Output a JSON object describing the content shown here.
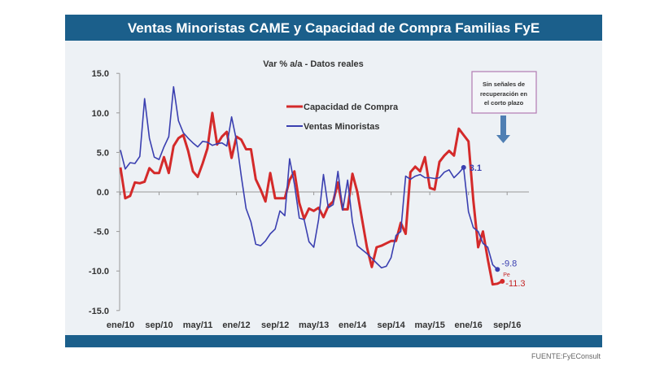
{
  "header": {
    "title": "Ventas Minoristas CAME y Capacidad de Compra Familias FyE",
    "bar_color": "#1b5f8b"
  },
  "footer": {
    "source": "FUENTE:FyEConsult"
  },
  "annotation": {
    "text_lines": [
      "Sin señales de",
      "recuperación en",
      "el corto plazo"
    ],
    "arrow": "down-arrow-icon"
  },
  "chart_data": {
    "type": "line",
    "subtitle": "Var % a/a - Datos reales",
    "ylim": [
      -15,
      15
    ],
    "yticks": [
      "15.0",
      "10.0",
      "5.0",
      "0.0",
      "-5.0",
      "-10.0",
      "-15.0"
    ],
    "ytick_values": [
      15,
      10,
      5,
      0,
      -5,
      -10,
      -15
    ],
    "xtick_labels": [
      "ene/10",
      "sep/10",
      "may/11",
      "ene/12",
      "sep/12",
      "may/13",
      "ene/14",
      "sep/14",
      "may/15",
      "ene/16",
      "sep/16"
    ],
    "x_frequency": "monthly from ene/10",
    "grid": false,
    "legend_position": "upper-center",
    "series": [
      {
        "name": "Capacidad de Compra",
        "color": "#d42a2a",
        "values": [
          3.1,
          -0.8,
          -0.5,
          1.2,
          1.1,
          1.3,
          3.0,
          2.4,
          2.4,
          4.4,
          2.4,
          5.8,
          6.8,
          7.2,
          5.2,
          2.6,
          1.9,
          3.6,
          5.5,
          10.0,
          6.0,
          7.0,
          7.6,
          4.3,
          7.0,
          6.6,
          5.4,
          5.4,
          1.6,
          0.3,
          -1.2,
          2.4,
          -0.8,
          -0.8,
          -0.8,
          1.5,
          2.6,
          -1.4,
          -3.4,
          -2.1,
          -2.4,
          -2.0,
          -3.2,
          -1.8,
          -1.2,
          1.2,
          -2.2,
          -2.2,
          2.3,
          0.0,
          -3.5,
          -7.0,
          -9.5,
          -7.0,
          -6.8,
          -6.5,
          -6.2,
          -6.2,
          -3.9,
          -5.3,
          2.5,
          3.2,
          2.6,
          4.4,
          0.5,
          0.3,
          3.8,
          4.6,
          5.2,
          4.6,
          8.0,
          7.2,
          6.4,
          -1.0,
          -7.0,
          -5.0,
          -8.5,
          -11.7,
          -11.6,
          -11.3
        ],
        "end_label": "-11.3",
        "end_note": "Pe"
      },
      {
        "name": "Ventas Minoristas",
        "color": "#3a3fb0",
        "values": [
          5.3,
          2.9,
          3.7,
          3.6,
          4.5,
          11.8,
          6.8,
          4.4,
          4.1,
          5.7,
          7.0,
          13.3,
          9.0,
          7.5,
          6.8,
          6.2,
          5.7,
          6.4,
          6.3,
          5.9,
          6.1,
          6.2,
          5.8,
          9.5,
          6.5,
          2.0,
          -2.1,
          -3.8,
          -6.6,
          -6.8,
          -6.2,
          -5.3,
          -4.7,
          -2.4,
          -3.0,
          4.2,
          1.0,
          -3.3,
          -3.5,
          -6.3,
          -7.0,
          -3.5,
          2.2,
          -2.0,
          -1.6,
          2.6,
          -2.3,
          1.5,
          -3.8,
          -6.8,
          -7.3,
          -7.8,
          -8.4,
          -9.0,
          -9.6,
          -9.4,
          -8.3,
          -5.5,
          -5.0,
          2.0,
          1.6,
          2.0,
          2.2,
          1.8,
          1.8,
          1.7,
          1.8,
          2.5,
          2.8,
          1.8,
          2.4,
          3.1,
          -2.5,
          -4.5,
          -5.0,
          -6.5,
          -7.0,
          -9.2,
          -9.8
        ],
        "point_labels": [
          {
            "month": "dic/15",
            "value": 3.1,
            "text": "3.1"
          }
        ],
        "end_label": "-9.8"
      }
    ]
  }
}
